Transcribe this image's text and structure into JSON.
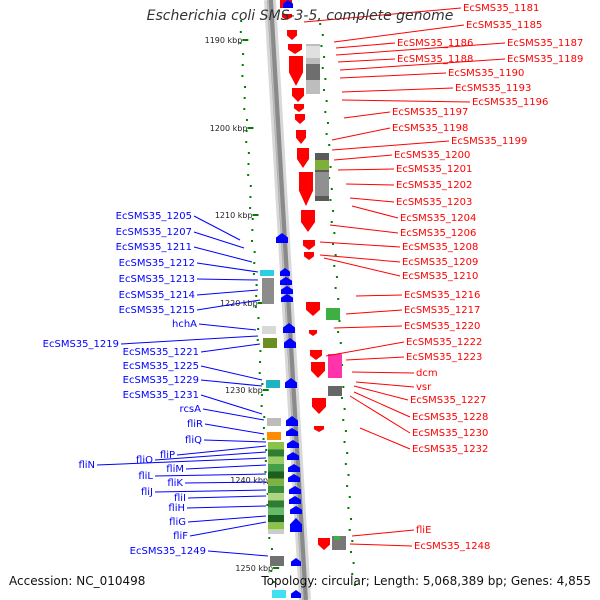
{
  "title": "Escherichia coli SMS-3-5, complete genome",
  "footer": {
    "accession": "Accession: NC_010498",
    "summary": "Topology: circular; Length: 5,068,389 bp; Genes: 4,855"
  },
  "colors": {
    "forward_strand": "#ff0000",
    "reverse_strand": "#0000ff",
    "right_labels": "#ff0000",
    "left_labels": "#0000ff",
    "ticks": "#008000",
    "axis": "#888888"
  },
  "scale_labels": [
    "1190 kbp",
    "1200 kbp",
    "1210 kbp",
    "1220 kbp",
    "1230 kbp",
    "1240 kbp",
    "1250 kbp"
  ],
  "right_labels": [
    "EcSMS35_1181",
    "EcSMS35_1185",
    "EcSMS35_1186",
    "EcSMS35_1187",
    "EcSMS35_1188",
    "EcSMS35_1189",
    "EcSMS35_1190",
    "EcSMS35_1193",
    "EcSMS35_1196",
    "EcSMS35_1197",
    "EcSMS35_1198",
    "EcSMS35_1199",
    "EcSMS35_1200",
    "EcSMS35_1201",
    "EcSMS35_1202",
    "EcSMS35_1203",
    "EcSMS35_1204",
    "EcSMS35_1206",
    "EcSMS35_1208",
    "EcSMS35_1209",
    "EcSMS35_1210",
    "EcSMS35_1216",
    "EcSMS35_1217",
    "EcSMS35_1220",
    "EcSMS35_1222",
    "EcSMS35_1223",
    "dcm",
    "vsr",
    "EcSMS35_1227",
    "EcSMS35_1228",
    "EcSMS35_1230",
    "EcSMS35_1232",
    "fliE",
    "EcSMS35_1248"
  ],
  "left_labels": [
    "EcSMS35_1205",
    "EcSMS35_1207",
    "EcSMS35_1211",
    "EcSMS35_1212",
    "EcSMS35_1213",
    "EcSMS35_1214",
    "EcSMS35_1215",
    "hchA",
    "EcSMS35_1219",
    "EcSMS35_1221",
    "EcSMS35_1225",
    "EcSMS35_1229",
    "EcSMS35_1231",
    "rcsA",
    "fliR",
    "fliQ",
    "fliP",
    "fliO",
    "fliN",
    "fliM",
    "fliL",
    "fliK",
    "fliJ",
    "fliI",
    "fliH",
    "fliG",
    "fliF",
    "EcSMS35_1249"
  ]
}
